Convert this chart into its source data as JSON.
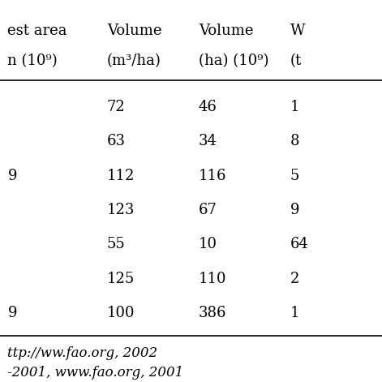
{
  "col_headers_line1": [
    "est area",
    "Volume",
    "Volume",
    "W"
  ],
  "col_headers_line2": [
    "n (10⁹)",
    "(m³/ha)",
    "(ha) (10⁹)",
    "(t"
  ],
  "rows": [
    [
      "",
      "72",
      "46",
      "1"
    ],
    [
      "",
      "63",
      "34",
      "8"
    ],
    [
      "9",
      "112",
      "116",
      "5"
    ],
    [
      "",
      "123",
      "67",
      "9"
    ],
    [
      "",
      "55",
      "10",
      "64"
    ],
    [
      "",
      "125",
      "110",
      "2"
    ],
    [
      "9",
      "100",
      "386",
      "1"
    ]
  ],
  "footnote1": "ttp://ww.fao.org, 2002",
  "footnote2": "-2001, www.fao.org, 2001",
  "bg_color": "#ffffff",
  "text_color": "#000000",
  "font_size": 13,
  "header_font_size": 13
}
